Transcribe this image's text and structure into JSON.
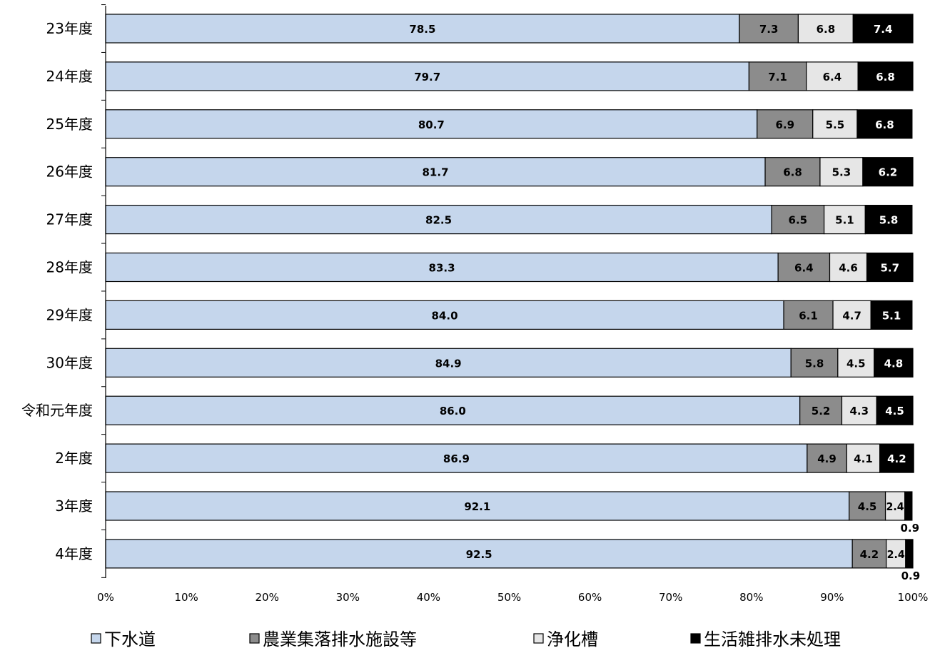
{
  "chart_data": {
    "type": "bar",
    "orientation": "horizontal",
    "stacked": true,
    "percent": true,
    "categories": [
      "23年度",
      "24年度",
      "25年度",
      "26年度",
      "27年度",
      "28年度",
      "29年度",
      "30年度",
      "令和元年度",
      "2年度",
      "3年度",
      "4年度"
    ],
    "series": [
      {
        "name": "下水道",
        "color": "#c5d6ec",
        "label_color": "#000000",
        "values": [
          78.5,
          79.7,
          80.7,
          81.7,
          82.5,
          83.3,
          84.0,
          84.9,
          86.0,
          86.9,
          92.1,
          92.5
        ],
        "labels": [
          "78.5",
          "79.7",
          "80.7",
          "81.7",
          "82.5",
          "83.3",
          "84.0",
          "84.9",
          "86.0",
          "86.9",
          "92.1",
          "92.5"
        ]
      },
      {
        "name": "農業集落排水施設等",
        "color": "#8c8c8c",
        "label_color": "#000000",
        "values": [
          7.3,
          7.1,
          6.9,
          6.8,
          6.5,
          6.4,
          6.1,
          5.8,
          5.2,
          4.9,
          4.5,
          4.2
        ],
        "labels": [
          "7.3",
          "7.1",
          "6.9",
          "6.8",
          "6.5",
          "6.4",
          "6.1",
          "5.8",
          "5.2",
          "4.9",
          "4.5",
          "4.2"
        ]
      },
      {
        "name": "浄化槽",
        "color": "#e6e6e6",
        "label_color": "#000000",
        "values": [
          6.8,
          6.4,
          5.5,
          5.3,
          5.1,
          4.6,
          4.7,
          4.5,
          4.3,
          4.1,
          2.4,
          2.4
        ],
        "labels": [
          "6.8",
          "6.4",
          "5.5",
          "5.3",
          "5.1",
          "4.6",
          "4.7",
          "4.5",
          "4.3",
          "4.1",
          "2.4",
          "2.4"
        ]
      },
      {
        "name": "生活雑排水未処理",
        "color": "#000000",
        "label_color": "#ffffff",
        "values": [
          7.4,
          6.8,
          6.8,
          6.2,
          5.8,
          5.7,
          5.1,
          4.8,
          4.5,
          4.2,
          0.9,
          0.9
        ],
        "labels": [
          "7.4",
          "6.8",
          "6.8",
          "6.2",
          "5.8",
          "5.7",
          "5.1",
          "4.8",
          "4.5",
          "4.2",
          "0.9",
          "0.9"
        ]
      }
    ],
    "x_ticks": [
      "0%",
      "10%",
      "20%",
      "30%",
      "40%",
      "50%",
      "60%",
      "70%",
      "80%",
      "90%",
      "100%"
    ],
    "xlim": [
      0,
      100
    ],
    "grid": false,
    "legend_position": "bottom",
    "title": "",
    "xlabel": "",
    "ylabel": ""
  }
}
